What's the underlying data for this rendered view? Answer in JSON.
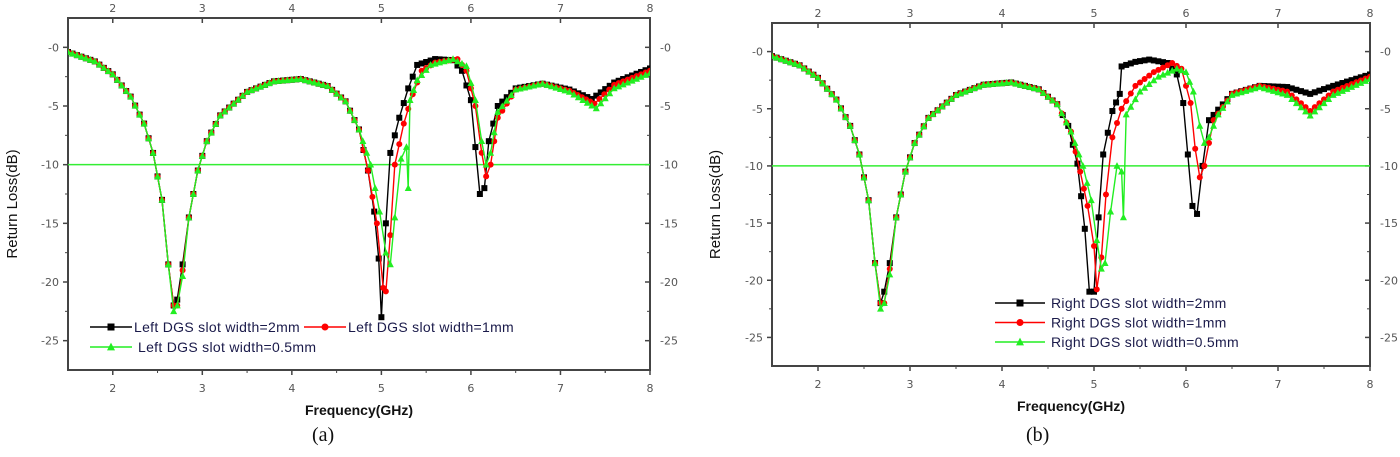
{
  "chart_data": [
    {
      "id": "a",
      "type": "line",
      "caption": "(a)",
      "title": "",
      "xlabel": "Frequency(GHz)",
      "ylabel": "Return Loss(dB)",
      "xlim": [
        1.5,
        8
      ],
      "ylim": [
        -27.5,
        2.5
      ],
      "xticks": [
        2,
        3,
        4,
        5,
        6,
        7,
        8
      ],
      "xtick_labels": [
        "2",
        "3",
        "4",
        "5",
        "6",
        "7",
        "8"
      ],
      "yticks": [
        0,
        -5,
        -10,
        -15,
        -20,
        -25
      ],
      "ytick_labels": [
        "-0",
        "-5",
        "-10",
        "-15",
        "-20",
        "-25"
      ],
      "mirror_axes": true,
      "grid": false,
      "reference_line": {
        "y": -10,
        "color": "#33ee33"
      },
      "legend_position": "lower-left",
      "legend_layout": "two-columns",
      "series": [
        {
          "name": "Left DGS slot width=2mm",
          "color": "#000000",
          "marker": "square",
          "x": [
            1.5,
            1.8,
            2.0,
            2.2,
            2.35,
            2.45,
            2.55,
            2.62,
            2.68,
            2.72,
            2.78,
            2.85,
            2.95,
            3.05,
            3.2,
            3.5,
            3.8,
            4.1,
            4.4,
            4.6,
            4.75,
            4.85,
            4.92,
            4.97,
            5.0,
            5.05,
            5.1,
            5.2,
            5.3,
            5.4,
            5.6,
            5.8,
            5.9,
            6.0,
            6.05,
            6.1,
            6.15,
            6.2,
            6.3,
            6.5,
            6.8,
            7.1,
            7.35,
            7.6,
            8.0
          ],
          "y": [
            -0.4,
            -1.2,
            -2.3,
            -4.2,
            -6.5,
            -9.0,
            -13.0,
            -18.5,
            -22.0,
            -21.5,
            -18.5,
            -14.5,
            -10.5,
            -8.0,
            -5.8,
            -3.8,
            -2.9,
            -2.7,
            -3.3,
            -4.6,
            -7.0,
            -10.5,
            -14.0,
            -18.0,
            -23.0,
            -15.0,
            -9.0,
            -6.0,
            -3.5,
            -1.5,
            -1.0,
            -1.1,
            -2.0,
            -4.5,
            -8.5,
            -12.5,
            -12.0,
            -8.0,
            -5.0,
            -3.5,
            -3.1,
            -3.6,
            -4.4,
            -3.0,
            -1.8
          ]
        },
        {
          "name": "Left DGS slot width=1mm",
          "color": "#ff0000",
          "marker": "circle",
          "x": [
            1.5,
            1.8,
            2.0,
            2.2,
            2.35,
            2.45,
            2.55,
            2.62,
            2.68,
            2.72,
            2.78,
            2.85,
            2.95,
            3.05,
            3.2,
            3.5,
            3.8,
            4.1,
            4.4,
            4.6,
            4.75,
            4.85,
            4.95,
            5.02,
            5.05,
            5.1,
            5.15,
            5.25,
            5.35,
            5.45,
            5.6,
            5.85,
            5.95,
            6.05,
            6.12,
            6.17,
            6.22,
            6.3,
            6.5,
            6.8,
            7.1,
            7.38,
            7.6,
            8.0
          ],
          "y": [
            -0.4,
            -1.2,
            -2.3,
            -4.2,
            -6.5,
            -9.0,
            -13.0,
            -18.5,
            -22.0,
            -22.0,
            -19.0,
            -14.5,
            -10.5,
            -8.0,
            -5.8,
            -3.8,
            -2.9,
            -2.7,
            -3.3,
            -4.6,
            -7.0,
            -10.5,
            -15.0,
            -20.5,
            -20.8,
            -16.0,
            -10.0,
            -6.5,
            -4.0,
            -2.0,
            -1.3,
            -1.0,
            -2.0,
            -5.0,
            -9.0,
            -11.0,
            -10.0,
            -6.0,
            -3.6,
            -3.1,
            -3.7,
            -4.8,
            -3.2,
            -2.0
          ]
        },
        {
          "name": "Left DGS slot width=0.5mm",
          "color": "#22ee22",
          "marker": "triangle",
          "x": [
            1.5,
            1.8,
            2.0,
            2.2,
            2.35,
            2.45,
            2.55,
            2.62,
            2.68,
            2.72,
            2.78,
            2.85,
            2.95,
            3.05,
            3.2,
            3.5,
            3.8,
            4.1,
            4.4,
            4.6,
            4.75,
            4.88,
            4.98,
            5.05,
            5.1,
            5.15,
            5.22,
            5.28,
            5.3,
            5.32,
            5.4,
            5.55,
            5.8,
            5.95,
            6.05,
            6.12,
            6.17,
            6.22,
            6.3,
            6.5,
            6.8,
            7.1,
            7.4,
            7.6,
            8.0
          ],
          "y": [
            -0.4,
            -1.2,
            -2.3,
            -4.2,
            -6.5,
            -9.0,
            -13.0,
            -18.5,
            -22.5,
            -22.0,
            -19.5,
            -14.5,
            -10.5,
            -8.0,
            -5.8,
            -3.8,
            -2.9,
            -2.7,
            -3.3,
            -4.6,
            -7.0,
            -10.0,
            -14.0,
            -17.5,
            -18.5,
            -14.5,
            -9.5,
            -8.5,
            -12.0,
            -4.5,
            -2.8,
            -1.5,
            -1.0,
            -1.6,
            -4.5,
            -8.0,
            -10.0,
            -9.0,
            -5.5,
            -3.6,
            -3.1,
            -3.8,
            -5.2,
            -3.5,
            -2.2
          ]
        }
      ]
    },
    {
      "id": "b",
      "type": "line",
      "caption": "(b)",
      "title": "",
      "xlabel": "Frequency(GHz)",
      "ylabel": "Return Loss(dB)",
      "xlim": [
        1.5,
        8
      ],
      "ylim": [
        -27.5,
        2.5
      ],
      "xticks": [
        2,
        3,
        4,
        5,
        6,
        7,
        8
      ],
      "xtick_labels": [
        "2",
        "3",
        "4",
        "5",
        "6",
        "7",
        "8"
      ],
      "yticks": [
        0,
        -5,
        -10,
        -15,
        -20,
        -25
      ],
      "ytick_labels": [
        "-0",
        "-5",
        "-10",
        "-15",
        "-20",
        "-25"
      ],
      "mirror_axes": true,
      "grid": false,
      "reference_line": {
        "y": -10,
        "color": "#33ee33"
      },
      "legend_position": "lower-right",
      "legend_layout": "one-column",
      "series": [
        {
          "name": "Right DGS slot width=2mm",
          "color": "#000000",
          "marker": "square",
          "x": [
            1.5,
            1.8,
            2.0,
            2.2,
            2.35,
            2.45,
            2.55,
            2.62,
            2.68,
            2.72,
            2.78,
            2.85,
            2.95,
            3.05,
            3.2,
            3.5,
            3.8,
            4.1,
            4.4,
            4.6,
            4.72,
            4.82,
            4.9,
            4.95,
            5.0,
            5.05,
            5.1,
            5.2,
            5.28,
            5.3,
            5.45,
            5.6,
            5.8,
            5.9,
            5.97,
            6.02,
            6.07,
            6.12,
            6.18,
            6.25,
            6.5,
            6.8,
            7.1,
            7.35,
            7.6,
            8.0
          ],
          "y": [
            -0.4,
            -1.2,
            -2.3,
            -4.2,
            -6.5,
            -9.0,
            -13.0,
            -18.5,
            -22.0,
            -21.0,
            -18.5,
            -14.5,
            -10.5,
            -8.0,
            -5.8,
            -3.8,
            -2.9,
            -2.7,
            -3.3,
            -4.6,
            -6.5,
            -9.8,
            -15.5,
            -21.0,
            -21.0,
            -14.5,
            -9.0,
            -5.2,
            -3.7,
            -1.3,
            -0.9,
            -0.7,
            -1.0,
            -2.0,
            -4.5,
            -9.0,
            -13.5,
            -14.2,
            -10.0,
            -6.0,
            -3.7,
            -3.0,
            -3.1,
            -3.7,
            -3.0,
            -2.0
          ]
        },
        {
          "name": "Right DGS slot width=1mm",
          "color": "#ff0000",
          "marker": "circle",
          "x": [
            1.5,
            1.8,
            2.0,
            2.2,
            2.35,
            2.45,
            2.55,
            2.62,
            2.68,
            2.72,
            2.78,
            2.85,
            2.95,
            3.05,
            3.2,
            3.5,
            3.8,
            4.1,
            4.4,
            4.6,
            4.75,
            4.85,
            4.93,
            5.0,
            5.03,
            5.08,
            5.13,
            5.2,
            5.3,
            5.45,
            5.65,
            5.85,
            5.95,
            6.05,
            6.1,
            6.15,
            6.2,
            6.3,
            6.5,
            6.8,
            7.1,
            7.35,
            7.6,
            8.0
          ],
          "y": [
            -0.4,
            -1.2,
            -2.3,
            -4.2,
            -6.5,
            -9.0,
            -13.0,
            -18.5,
            -22.0,
            -22.0,
            -19.0,
            -14.5,
            -10.5,
            -8.0,
            -5.8,
            -3.8,
            -2.9,
            -2.7,
            -3.3,
            -4.6,
            -7.0,
            -10.5,
            -13.5,
            -17.0,
            -20.8,
            -18.0,
            -12.5,
            -7.5,
            -5.0,
            -3.0,
            -1.8,
            -1.0,
            -1.5,
            -4.5,
            -8.5,
            -11.0,
            -10.0,
            -6.0,
            -3.7,
            -3.0,
            -3.5,
            -5.2,
            -3.5,
            -2.2
          ]
        },
        {
          "name": "Right DGS slot width=0.5mm",
          "color": "#22ee22",
          "marker": "triangle",
          "x": [
            1.5,
            1.8,
            2.0,
            2.2,
            2.35,
            2.45,
            2.55,
            2.62,
            2.68,
            2.72,
            2.78,
            2.85,
            2.95,
            3.05,
            3.2,
            3.5,
            3.8,
            4.1,
            4.4,
            4.6,
            4.75,
            4.88,
            4.97,
            5.03,
            5.08,
            5.12,
            5.18,
            5.25,
            5.3,
            5.32,
            5.35,
            5.5,
            5.7,
            5.9,
            6.0,
            6.08,
            6.15,
            6.2,
            6.25,
            6.35,
            6.5,
            6.8,
            7.1,
            7.35,
            7.6,
            8.0
          ],
          "y": [
            -0.4,
            -1.2,
            -2.3,
            -4.2,
            -6.5,
            -9.0,
            -13.0,
            -18.5,
            -22.5,
            -22.0,
            -19.5,
            -14.5,
            -10.5,
            -8.0,
            -5.8,
            -3.8,
            -2.9,
            -2.7,
            -3.3,
            -4.6,
            -7.0,
            -10.0,
            -13.0,
            -16.5,
            -19.0,
            -18.5,
            -14.0,
            -10.0,
            -10.5,
            -14.5,
            -5.5,
            -3.5,
            -2.2,
            -1.5,
            -1.8,
            -3.5,
            -6.5,
            -8.0,
            -7.5,
            -5.5,
            -3.8,
            -3.1,
            -3.8,
            -5.6,
            -3.8,
            -2.4
          ]
        }
      ]
    }
  ],
  "panels": {
    "a": {
      "caption": "(a)",
      "xlabel": "Frequency(GHz)",
      "ylabel": "Return Loss(dB)",
      "legend": [
        "Left DGS slot width=2mm",
        "Left DGS slot width=1mm",
        "Left DGS slot width=0.5mm"
      ]
    },
    "b": {
      "caption": "(b)",
      "xlabel": "Frequency(GHz)",
      "ylabel": "Return Loss(dB)",
      "legend": [
        "Right DGS slot width=2mm",
        "Right DGS slot width=1mm",
        "Right DGS slot width=0.5mm"
      ]
    }
  }
}
